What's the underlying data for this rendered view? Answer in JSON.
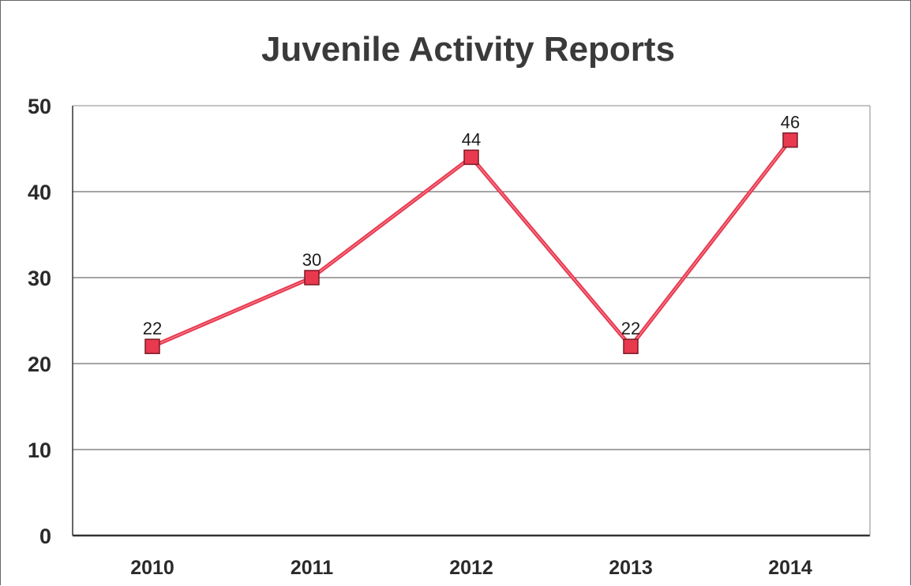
{
  "chart_data": {
    "type": "line",
    "title": "Juvenile Activity Reports",
    "categories": [
      "2010",
      "2011",
      "2012",
      "2013",
      "2014"
    ],
    "series": [
      {
        "values": [
          22,
          30,
          44,
          22,
          46
        ],
        "color": "#e8394f",
        "marker": "square"
      }
    ],
    "data_labels": [
      "22",
      "30",
      "44",
      "22",
      "46"
    ],
    "ylim": [
      0,
      50
    ],
    "yticks": [
      "0",
      "10",
      "20",
      "30",
      "40",
      "50"
    ],
    "grid": true,
    "legend": "none"
  }
}
